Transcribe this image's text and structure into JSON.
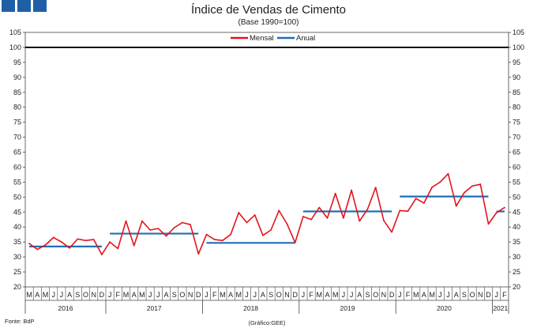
{
  "header": {
    "logo": "three-blue-squares"
  },
  "footer": {
    "source": "Fonte: BdP",
    "credit": "(Gráfico:GEE)"
  },
  "colors": {
    "mensal": "#e3141b",
    "anual": "#1f6fb5",
    "reference": "#000000",
    "logo": "#1f5fa6"
  },
  "chart_data": {
    "type": "line",
    "title": "Índice de Vendas de Cimento",
    "subtitle": "(Base 1990=100)",
    "ylim": [
      20,
      105
    ],
    "yticks": [
      20,
      25,
      30,
      35,
      40,
      45,
      50,
      55,
      60,
      65,
      70,
      75,
      80,
      85,
      90,
      95,
      100,
      105
    ],
    "reference_line": 100,
    "grid": false,
    "legend": {
      "position": "top-center",
      "entries": [
        "Mensal",
        "Anual"
      ]
    },
    "month_labels": [
      "M",
      "A",
      "M",
      "J",
      "J",
      "A",
      "S",
      "O",
      "N",
      "D",
      "J",
      "F",
      "M",
      "A",
      "M",
      "J",
      "J",
      "A",
      "S",
      "O",
      "N",
      "D",
      "J",
      "F",
      "M",
      "A",
      "M",
      "J",
      "J",
      "A",
      "S",
      "O",
      "N",
      "D",
      "J",
      "F",
      "M",
      "A",
      "M",
      "J",
      "J",
      "A",
      "S",
      "O",
      "N",
      "D",
      "J",
      "F",
      "M",
      "A",
      "M",
      "J",
      "J",
      "A",
      "S",
      "O",
      "N",
      "D",
      "J",
      "F"
    ],
    "years": [
      {
        "label": "2016",
        "start": 0,
        "end": 9
      },
      {
        "label": "2017",
        "start": 10,
        "end": 21
      },
      {
        "label": "2018",
        "start": 22,
        "end": 33
      },
      {
        "label": "2019",
        "start": 34,
        "end": 45
      },
      {
        "label": "2020",
        "start": 46,
        "end": 57
      },
      {
        "label": "2021",
        "start": 58,
        "end": 59
      }
    ],
    "series": [
      {
        "name": "Mensal",
        "values": [
          34.5,
          32.5,
          34.0,
          36.5,
          35.0,
          33.0,
          36.0,
          35.5,
          35.8,
          30.8,
          35.0,
          32.8,
          42.0,
          33.8,
          42.0,
          39.0,
          39.5,
          37.0,
          39.8,
          41.5,
          40.8,
          31.0,
          37.5,
          35.8,
          35.5,
          37.5,
          44.8,
          41.5,
          44.0,
          37.2,
          39.0,
          45.5,
          41.0,
          34.8,
          43.5,
          42.5,
          46.5,
          43.0,
          51.2,
          43.0,
          52.3,
          42.0,
          46.0,
          53.2,
          42.2,
          38.3,
          45.5,
          45.3,
          49.5,
          48.0,
          53.3,
          55.0,
          57.8,
          47.0,
          51.5,
          53.7,
          54.3,
          41.0,
          44.8,
          46.5
        ]
      },
      {
        "name": "Anual",
        "segments": [
          {
            "year": "2016",
            "value": 33.5
          },
          {
            "year": "2017",
            "value": 37.8
          },
          {
            "year": "2018",
            "value": 34.7
          },
          {
            "year": "2019",
            "value": 45.2
          },
          {
            "year": "2020",
            "value": 50.2
          },
          {
            "year": "2021",
            "value": 45.2
          }
        ]
      }
    ]
  }
}
